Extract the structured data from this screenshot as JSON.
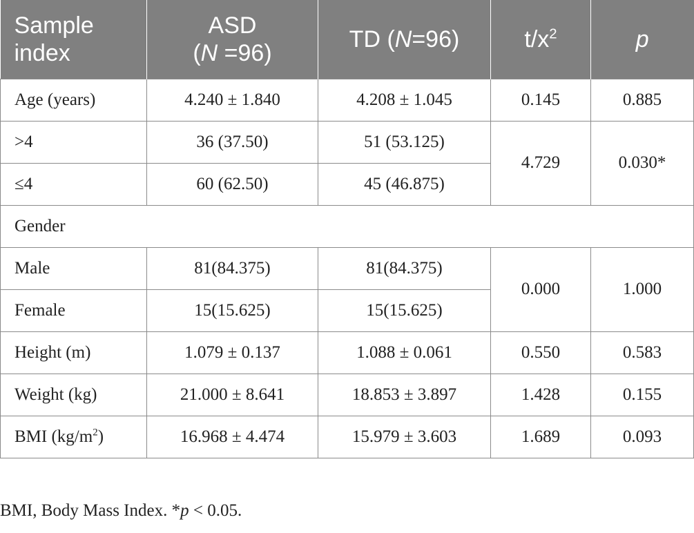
{
  "header": {
    "col0_line1": "Sample",
    "col0_line2": "index",
    "col1_line1": "ASD",
    "col1_n_open": "(",
    "col1_n_symbol": "N",
    "col1_n_value": " =96)",
    "col2_prefix": "TD (",
    "col2_n_symbol": "N",
    "col2_n_value": "=96)",
    "col3_base": "t/x",
    "col3_sup": "2",
    "col4": "p"
  },
  "rows": {
    "age": {
      "label": "Age (years)",
      "asd": "4.240 ± 1.840",
      "td": "4.208 ± 1.045",
      "stat": "0.145",
      "p": "0.885"
    },
    "gt4": {
      "label": ">4",
      "asd": "36 (37.50)",
      "td": "51 (53.125)"
    },
    "le4": {
      "label": "≤4",
      "asd": "60 (62.50)",
      "td": "45 (46.875)"
    },
    "age_group_stat": "4.729",
    "age_group_p": "0.030*",
    "gender": {
      "label": "Gender"
    },
    "male": {
      "label": "Male",
      "asd": "81(84.375)",
      "td": "81(84.375)"
    },
    "female": {
      "label": "Female",
      "asd": "15(15.625)",
      "td": "15(15.625)"
    },
    "gender_stat": "0.000",
    "gender_p": "1.000",
    "height": {
      "label": "Height (m)",
      "asd": "1.079 ± 0.137",
      "td": "1.088 ± 0.061",
      "stat": "0.550",
      "p": "0.583"
    },
    "weight": {
      "label": "Weight (kg)",
      "asd": "21.000 ± 8.641",
      "td": "18.853 ± 3.897",
      "stat": "1.428",
      "p": "0.155"
    },
    "bmi": {
      "label_base": "BMI (kg/m",
      "label_sup": "2",
      "label_close": ")",
      "asd": "16.968 ± 4.474",
      "td": "15.979 ± 3.603",
      "stat": "1.689",
      "p": "0.093"
    }
  },
  "footnote": {
    "text": "BMI, Body Mass Index. *",
    "p_symbol": "p",
    "condition": " < 0.05."
  }
}
